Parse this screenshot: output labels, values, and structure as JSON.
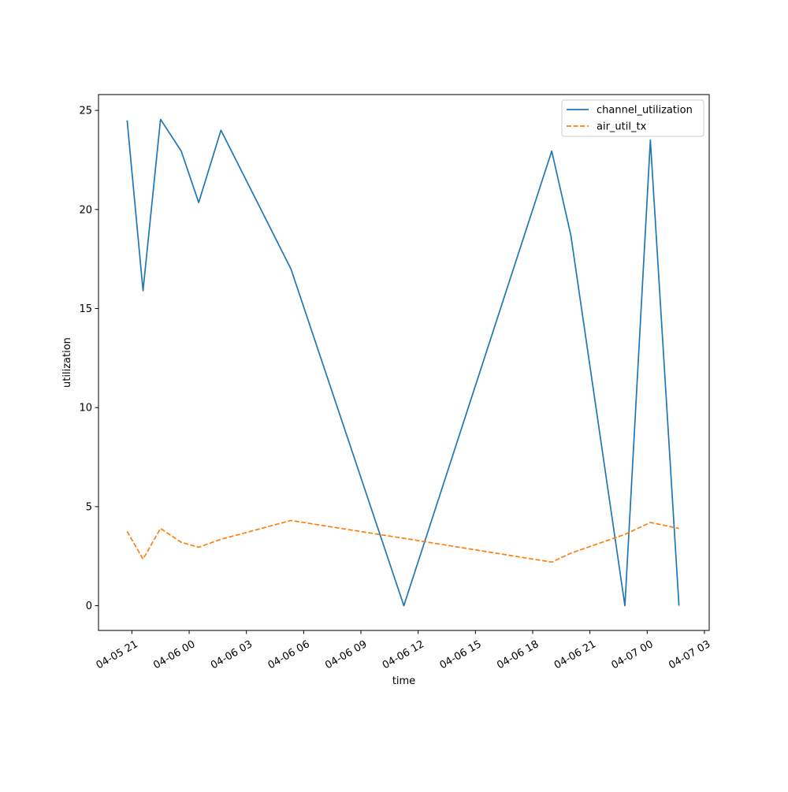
{
  "chart_data": {
    "type": "line",
    "xlabel": "time",
    "ylabel": "utilization",
    "xlim": [
      "2024-04-05T19:15",
      "2024-04-07T03:15"
    ],
    "ylim": [
      -1.25,
      25.8
    ],
    "x_ticks": [
      {
        "t": "2024-04-05T21:00",
        "label": "04-05 21"
      },
      {
        "t": "2024-04-06T00:00",
        "label": "04-06 00"
      },
      {
        "t": "2024-04-06T03:00",
        "label": "04-06 03"
      },
      {
        "t": "2024-04-06T06:00",
        "label": "04-06 06"
      },
      {
        "t": "2024-04-06T09:00",
        "label": "04-06 09"
      },
      {
        "t": "2024-04-06T12:00",
        "label": "04-06 12"
      },
      {
        "t": "2024-04-06T15:00",
        "label": "04-06 15"
      },
      {
        "t": "2024-04-06T18:00",
        "label": "04-06 18"
      },
      {
        "t": "2024-04-06T21:00",
        "label": "04-06 21"
      },
      {
        "t": "2024-04-07T00:00",
        "label": "04-07 00"
      },
      {
        "t": "2024-04-07T03:00",
        "label": "04-07 03"
      }
    ],
    "y_ticks": [
      {
        "v": 0,
        "label": "0"
      },
      {
        "v": 5,
        "label": "5"
      },
      {
        "v": 10,
        "label": "10"
      },
      {
        "v": 15,
        "label": "15"
      },
      {
        "v": 20,
        "label": "20"
      },
      {
        "v": 25,
        "label": "25"
      }
    ],
    "grid": false,
    "legend_position": "top-right",
    "series": [
      {
        "name": "channel_utilization",
        "color": "#1f77b4",
        "style": "solid",
        "points": [
          {
            "t": "2024-04-05T20:45",
            "y": 24.5
          },
          {
            "t": "2024-04-05T21:35",
            "y": 15.9
          },
          {
            "t": "2024-04-05T22:30",
            "y": 24.55
          },
          {
            "t": "2024-04-05T23:35",
            "y": 22.95
          },
          {
            "t": "2024-04-06T00:30",
            "y": 20.35
          },
          {
            "t": "2024-04-06T01:40",
            "y": 24.0
          },
          {
            "t": "2024-04-06T05:20",
            "y": 17.0
          },
          {
            "t": "2024-04-06T11:15",
            "y": 0.0
          },
          {
            "t": "2024-04-06T19:00",
            "y": 22.95
          },
          {
            "t": "2024-04-06T20:00",
            "y": 18.7
          },
          {
            "t": "2024-04-06T22:50",
            "y": 0.0
          },
          {
            "t": "2024-04-07T00:10",
            "y": 23.5
          },
          {
            "t": "2024-04-07T01:40",
            "y": 0.0
          }
        ]
      },
      {
        "name": "air_util_tx",
        "color": "#ff7f0e",
        "style": "dashed",
        "points": [
          {
            "t": "2024-04-05T20:45",
            "y": 3.75
          },
          {
            "t": "2024-04-05T21:35",
            "y": 2.35
          },
          {
            "t": "2024-04-05T22:30",
            "y": 3.9
          },
          {
            "t": "2024-04-05T23:35",
            "y": 3.2
          },
          {
            "t": "2024-04-06T00:30",
            "y": 2.95
          },
          {
            "t": "2024-04-06T01:40",
            "y": 3.35
          },
          {
            "t": "2024-04-06T05:20",
            "y": 4.3
          },
          {
            "t": "2024-04-06T11:15",
            "y": 3.4
          },
          {
            "t": "2024-04-06T19:00",
            "y": 2.2
          },
          {
            "t": "2024-04-06T20:00",
            "y": 2.65
          },
          {
            "t": "2024-04-06T22:50",
            "y": 3.6
          },
          {
            "t": "2024-04-07T00:10",
            "y": 4.2
          },
          {
            "t": "2024-04-07T01:40",
            "y": 3.9
          }
        ]
      }
    ]
  }
}
